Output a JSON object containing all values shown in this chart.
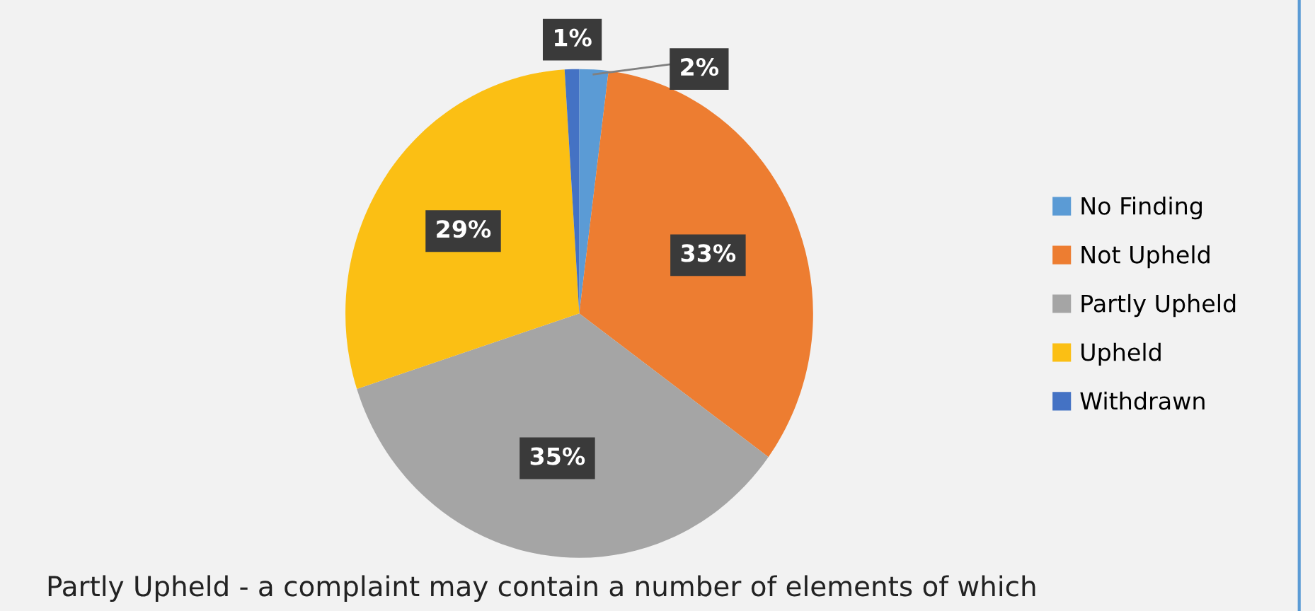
{
  "chart_data": {
    "type": "pie",
    "categories": [
      "No Finding",
      "Not Upheld",
      "Partly Upheld",
      "Upheld",
      "Withdrawn"
    ],
    "values": [
      2,
      33,
      35,
      29,
      1
    ],
    "colors": [
      "#5b9bd5",
      "#ed7d31",
      "#a5a5a5",
      "#fbbf14",
      "#4472c4"
    ],
    "value_labels": [
      "2%",
      "33%",
      "35%",
      "29%",
      "1%"
    ],
    "legend": "right",
    "annotations": [
      "Partly Upheld - a complaint may contain a number of elements of which"
    ]
  }
}
